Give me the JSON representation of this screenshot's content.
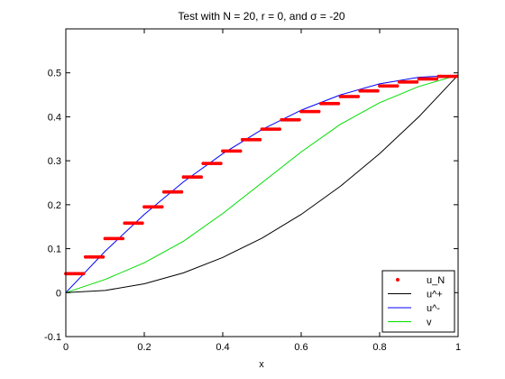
{
  "chart_data": {
    "type": "line",
    "title": "Test with N = 20, r = 0, and σ = -20",
    "xlabel": "x",
    "ylabel": "",
    "xlim": [
      0,
      1
    ],
    "ylim": [
      -0.1,
      0.6
    ],
    "xticks": [
      0,
      0.2,
      0.4,
      0.6,
      0.8,
      1
    ],
    "xtick_labels": [
      "0",
      "0.2",
      "0.4",
      "0.6",
      "0.8",
      "1"
    ],
    "yticks": [
      -0.1,
      0,
      0.1,
      0.2,
      0.3,
      0.4,
      0.5
    ],
    "ytick_labels": [
      "-0.1",
      "0",
      "0.1",
      "0.2",
      "0.3",
      "0.4",
      "0.5"
    ],
    "grid": false,
    "legend_position": "bottom-right",
    "series": [
      {
        "name": "u_N",
        "style": "markers",
        "color": "#ff0000",
        "step_edges": [
          0,
          0.05,
          0.1,
          0.15,
          0.2,
          0.25,
          0.3,
          0.35,
          0.4,
          0.45,
          0.5,
          0.55,
          0.6,
          0.65,
          0.7,
          0.75,
          0.8,
          0.85,
          0.9,
          0.95,
          1.0
        ],
        "step_values": [
          0.043,
          0.081,
          0.123,
          0.158,
          0.195,
          0.229,
          0.263,
          0.294,
          0.322,
          0.348,
          0.372,
          0.393,
          0.412,
          0.43,
          0.446,
          0.459,
          0.47,
          0.479,
          0.486,
          0.492
        ]
      },
      {
        "name": "u^+",
        "style": "line",
        "color": "#000000",
        "x": [
          0,
          0.1,
          0.2,
          0.3,
          0.4,
          0.5,
          0.6,
          0.7,
          0.8,
          0.9,
          1.0
        ],
        "y": [
          0,
          0.005,
          0.02,
          0.045,
          0.08,
          0.124,
          0.178,
          0.242,
          0.316,
          0.4,
          0.495
        ]
      },
      {
        "name": "u^-",
        "style": "line",
        "color": "#0000ff",
        "x": [
          0,
          0.1,
          0.2,
          0.3,
          0.4,
          0.5,
          0.6,
          0.7,
          0.8,
          0.9,
          1.0
        ],
        "y": [
          0,
          0.094,
          0.178,
          0.252,
          0.316,
          0.371,
          0.415,
          0.45,
          0.475,
          0.49,
          0.495
        ]
      },
      {
        "name": "v",
        "style": "line",
        "color": "#00dd00",
        "x": [
          0,
          0.1,
          0.2,
          0.3,
          0.4,
          0.5,
          0.6,
          0.7,
          0.8,
          0.9,
          1.0
        ],
        "y": [
          0,
          0.03,
          0.068,
          0.117,
          0.18,
          0.25,
          0.32,
          0.383,
          0.432,
          0.469,
          0.495
        ]
      }
    ]
  }
}
